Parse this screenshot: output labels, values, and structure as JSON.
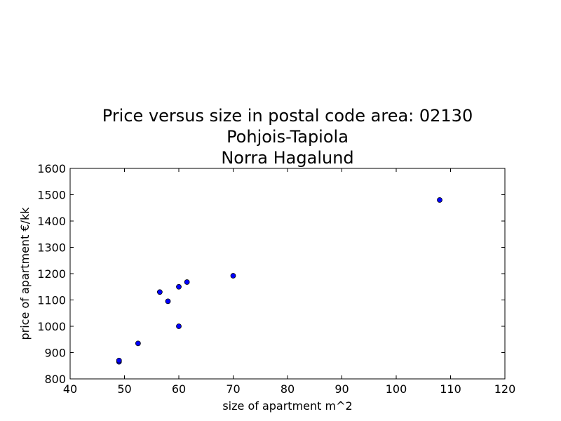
{
  "chart_data": {
    "type": "scatter",
    "title_lines": [
      "Price versus size in postal code area: 02130",
      "Pohjois-Tapiola",
      "Norra Hagalund"
    ],
    "xlabel": "size of apartment m^2",
    "ylabel": "price of apartment €/kk",
    "xlim": [
      40,
      120
    ],
    "ylim": [
      800,
      1600
    ],
    "xticks": [
      40,
      50,
      60,
      70,
      80,
      90,
      100,
      110,
      120
    ],
    "yticks": [
      800,
      900,
      1000,
      1100,
      1200,
      1300,
      1400,
      1500,
      1600
    ],
    "grid": false,
    "legend": "none",
    "marker_color": "#0000ff",
    "marker_edge_color": "#000000",
    "points": [
      {
        "x": 49,
        "y": 865
      },
      {
        "x": 49,
        "y": 870
      },
      {
        "x": 52.5,
        "y": 935
      },
      {
        "x": 56.5,
        "y": 1130
      },
      {
        "x": 58,
        "y": 1095
      },
      {
        "x": 60,
        "y": 1000
      },
      {
        "x": 60,
        "y": 1150
      },
      {
        "x": 61.5,
        "y": 1168
      },
      {
        "x": 70,
        "y": 1192
      },
      {
        "x": 108,
        "y": 1480
      }
    ]
  }
}
